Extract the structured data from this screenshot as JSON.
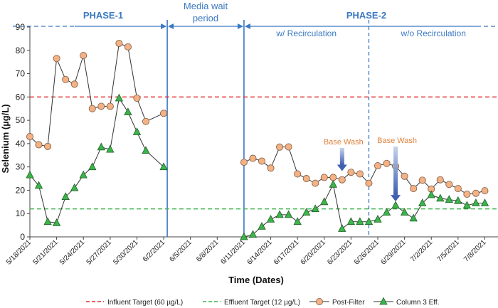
{
  "chart_data": {
    "type": "line",
    "xlabel": "Time (Dates)",
    "ylabel": "Selenium (µg/L)",
    "ylim": [
      0,
      90
    ],
    "yticks": [
      0,
      10,
      20,
      30,
      40,
      50,
      60,
      70,
      80,
      90
    ],
    "x_ticks": [
      "5/18/2021",
      "5/21/2021",
      "5/24/2021",
      "5/27/2021",
      "5/30/2021",
      "6/2/2021",
      "6/5/2021",
      "6/8/2021",
      "6/11/2021",
      "6/14/2021",
      "6/17/2021",
      "6/20/2021",
      "6/23/2021",
      "6/26/2021",
      "6/29/2021",
      "7/2/2021",
      "7/5/2021",
      "7/8/2021"
    ],
    "x_start": "5/18/2021",
    "x_end": "7/9/2021",
    "reference_lines": [
      {
        "name": "Influent Target (60 µg/L)",
        "y": 60,
        "color": "#e02b2b"
      },
      {
        "name": "Effluent Target (12 µg/L)",
        "y": 12,
        "color": "#3cb44b"
      }
    ],
    "series": [
      {
        "name": "Post-Filter",
        "color": "#f4b183",
        "marker": "circle",
        "segments": [
          [
            [
              "5/18/2021",
              43
            ],
            [
              "5/19/2021",
              39.5
            ],
            [
              "5/20/2021",
              38.8
            ],
            [
              "5/21/2021",
              76.5
            ],
            [
              "5/22/2021",
              67.5
            ],
            [
              "5/23/2021",
              65.5
            ],
            [
              "5/24/2021",
              77.8
            ],
            [
              "5/25/2021",
              55
            ],
            [
              "5/26/2021",
              56
            ],
            [
              "5/27/2021",
              56
            ],
            [
              "5/28/2021",
              83
            ],
            [
              "5/29/2021",
              81.5
            ],
            [
              "5/30/2021",
              59.5
            ],
            [
              "5/31/2021",
              49.5
            ],
            [
              "6/2/2021",
              53
            ]
          ],
          [
            [
              "6/11/2021",
              32
            ],
            [
              "6/12/2021",
              33.7
            ],
            [
              "6/13/2021",
              32.5
            ],
            [
              "6/14/2021",
              29.5
            ],
            [
              "6/15/2021",
              38.5
            ],
            [
              "6/16/2021",
              38.6
            ],
            [
              "6/17/2021",
              27
            ],
            [
              "6/18/2021",
              25
            ],
            [
              "6/19/2021",
              23
            ],
            [
              "6/20/2021",
              25.5
            ],
            [
              "6/21/2021",
              25.5
            ],
            [
              "6/22/2021",
              24.5
            ],
            [
              "6/23/2021",
              27.7
            ],
            [
              "6/24/2021",
              27
            ],
            [
              "6/25/2021",
              23
            ],
            [
              "6/26/2021",
              30.5
            ],
            [
              "6/27/2021",
              31.5
            ],
            [
              "6/28/2021",
              30.3
            ],
            [
              "6/29/2021",
              26
            ],
            [
              "6/30/2021",
              20.7
            ],
            [
              "7/1/2021",
              24.3
            ],
            [
              "7/2/2021",
              20.5
            ],
            [
              "7/3/2021",
              24.5
            ],
            [
              "7/4/2021",
              22.5
            ],
            [
              "7/5/2021",
              20.7
            ],
            [
              "7/6/2021",
              18.3
            ],
            [
              "7/7/2021",
              18.7
            ],
            [
              "7/8/2021",
              19.8
            ]
          ]
        ]
      },
      {
        "name": "Column 3 Eff.",
        "color": "#3cb44b",
        "marker": "triangle",
        "segments": [
          [
            [
              "5/18/2021",
              26.5
            ],
            [
              "5/19/2021",
              22
            ],
            [
              "5/20/2021",
              6.5
            ],
            [
              "5/21/2021",
              6
            ],
            [
              "5/22/2021",
              17.2
            ],
            [
              "5/23/2021",
              21
            ],
            [
              "5/24/2021",
              26.5
            ],
            [
              "5/25/2021",
              30
            ],
            [
              "5/26/2021",
              38.5
            ],
            [
              "5/27/2021",
              37.5
            ],
            [
              "5/28/2021",
              59.5
            ],
            [
              "5/29/2021",
              53.5
            ],
            [
              "5/30/2021",
              45
            ],
            [
              "5/31/2021",
              37
            ],
            [
              "6/2/2021",
              30
            ]
          ],
          [
            [
              "6/11/2021",
              0
            ],
            [
              "6/12/2021",
              1
            ],
            [
              "6/13/2021",
              4.5
            ],
            [
              "6/14/2021",
              7.5
            ],
            [
              "6/15/2021",
              9.5
            ],
            [
              "6/16/2021",
              9.5
            ],
            [
              "6/17/2021",
              6.5
            ],
            [
              "6/18/2021",
              10.5
            ],
            [
              "6/19/2021",
              12
            ],
            [
              "6/20/2021",
              15
            ],
            [
              "6/21/2021",
              22.5
            ],
            [
              "6/22/2021",
              3.5
            ],
            [
              "6/23/2021",
              6.5
            ],
            [
              "6/24/2021",
              6.5
            ],
            [
              "6/25/2021",
              6.5
            ],
            [
              "6/26/2021",
              7.5
            ],
            [
              "6/27/2021",
              10.5
            ],
            [
              "6/28/2021",
              13.5
            ],
            [
              "6/29/2021",
              10.5
            ],
            [
              "6/30/2021",
              8
            ],
            [
              "7/1/2021",
              14.5
            ],
            [
              "7/2/2021",
              18
            ],
            [
              "7/3/2021",
              16.5
            ],
            [
              "7/4/2021",
              16
            ],
            [
              "7/5/2021",
              15.5
            ],
            [
              "7/6/2021",
              13.5
            ],
            [
              "7/7/2021",
              14.5
            ],
            [
              "7/8/2021",
              14.5
            ]
          ]
        ]
      }
    ],
    "phases": {
      "phase1": "PHASE-1",
      "wait_line1": "Media wait",
      "wait_line2": "period",
      "phase2": "PHASE-2",
      "sub_with": "w/ Recirculation",
      "sub_without": "w/o Recirculation"
    },
    "phase_boundaries": {
      "phase1_end": "6/2/2021",
      "phase2_start": "6/11/2021",
      "recirc_end": "6/25/2021"
    },
    "annotations": [
      {
        "text": "Base Wash",
        "date": "6/22/2021",
        "arrow_to_y": 27
      },
      {
        "text": "Base Wash",
        "date": "6/28/2021",
        "arrow_to_y": 14
      }
    ],
    "legend": [
      "Influent Target (60 µg/L)",
      "Effluent Target (12 µg/L)",
      "Post-Filter",
      "Column 3 Eff."
    ],
    "legend_position": "bottom"
  }
}
